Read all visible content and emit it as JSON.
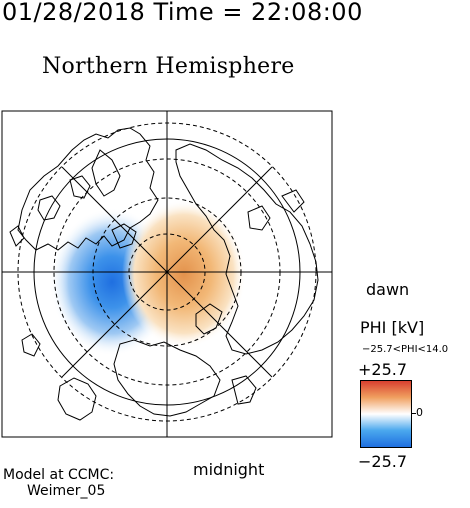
{
  "header": {
    "timestamp": "01/28/2018 Time = 22:08:00",
    "title": "Northern Hemisphere"
  },
  "map": {
    "projection": "polar",
    "hemisphere": "north",
    "dawn_label": "dawn",
    "midnight_label": "midnight",
    "positive_cell_color": "#e9a35c",
    "negative_cell_color": "#2f89e0"
  },
  "colorbar": {
    "title": "PHI [kV]",
    "range_label": "−25.7<PHI<14.0",
    "max_label": "+25.7",
    "min_label": "−25.7",
    "zero_label": "0",
    "max_value": 25.7,
    "min_value": -25.7,
    "field_min": -25.7,
    "field_max": 14.0,
    "colors": [
      "#1f6fe0",
      "#4aa8ee",
      "#ffffff",
      "#f0a060",
      "#d94030"
    ]
  },
  "footer": {
    "model_line1": "Model at CCMC:",
    "model_line2": "Weimer_05"
  }
}
